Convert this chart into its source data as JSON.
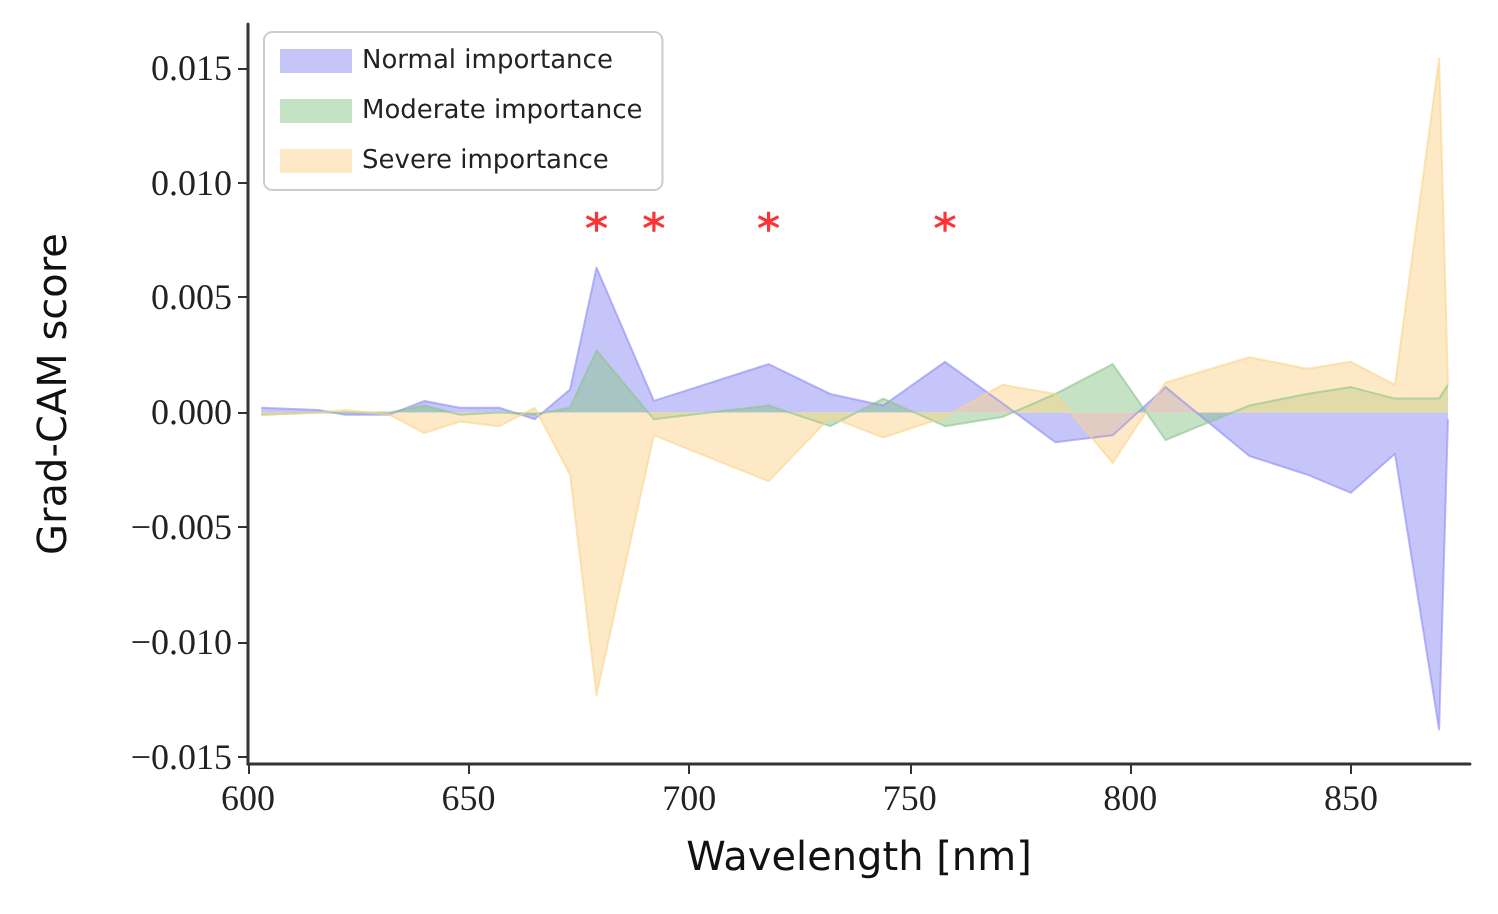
{
  "chart_data": {
    "type": "area",
    "xlabel": "Wavelength [nm]",
    "ylabel": "Grad-CAM score",
    "x": [
      603,
      616,
      622,
      632,
      640,
      648,
      657,
      665,
      673,
      679,
      692,
      718,
      732,
      744,
      758,
      771,
      783,
      796,
      808,
      827,
      840,
      850,
      860,
      870,
      872
    ],
    "series": [
      {
        "name": "Normal importance",
        "color": "#8c8cf5",
        "values": [
          0.0002,
          0.0001,
          -0.0001,
          -0.0001,
          0.0005,
          0.0002,
          0.0002,
          -0.0003,
          0.001,
          0.0063,
          0.0005,
          0.0021,
          0.0008,
          0.0003,
          0.0022,
          0.0004,
          -0.0013,
          -0.001,
          0.0011,
          -0.0019,
          -0.0027,
          -0.0035,
          -0.0018,
          -0.0138,
          -0.0003
        ]
      },
      {
        "name": "Moderate importance",
        "color": "#8cc58c",
        "values": [
          -0.0001,
          0,
          0,
          0,
          0.0003,
          -0.0001,
          0,
          -0.0001,
          0.0002,
          0.0027,
          -0.0003,
          0.0003,
          -0.0006,
          0.0006,
          -0.0006,
          -0.0002,
          0.0008,
          0.0021,
          -0.0012,
          0.0003,
          0.0008,
          0.0011,
          0.0006,
          0.0006,
          0.0012
        ]
      },
      {
        "type": "scatter",
        "color": "#ff0000",
        "marker": "cross",
        "x": [
          679,
          692,
          718,
          758
        ],
        "values": [
          0.0083,
          0.0083,
          0.0083,
          0.0083
        ]
      },
      {
        "name": "Severe importance",
        "color": "#fbd38c",
        "values": [
          -0.0001,
          0,
          0.0001,
          -0.0001,
          -0.0009,
          -0.0004,
          -0.0006,
          0.0002,
          -0.0027,
          -0.0123,
          -0.001,
          -0.003,
          -0.0002,
          -0.0011,
          -0.0002,
          0.0012,
          0.0008,
          -0.0022,
          0.0013,
          0.0024,
          0.0019,
          0.0022,
          0.0012,
          0.0154,
          0.0012
        ]
      }
    ],
    "xlim": [
      600,
      877
    ],
    "xticks": [
      600,
      650,
      700,
      750,
      800,
      850
    ],
    "ylim": [
      -0.0153,
      0.0169
    ],
    "yticks": [
      {
        "value": -0.015,
        "label": "−0.015"
      },
      {
        "value": -0.01,
        "label": "−0.010"
      },
      {
        "value": -0.005,
        "label": "−0.005"
      },
      {
        "value": 0,
        "label": "0.000"
      },
      {
        "value": 0.005,
        "label": "0.005"
      },
      {
        "value": 0.01,
        "label": "0.010"
      },
      {
        "value": 0.015,
        "label": "0.015"
      }
    ],
    "legend": "top left",
    "grid": false
  }
}
